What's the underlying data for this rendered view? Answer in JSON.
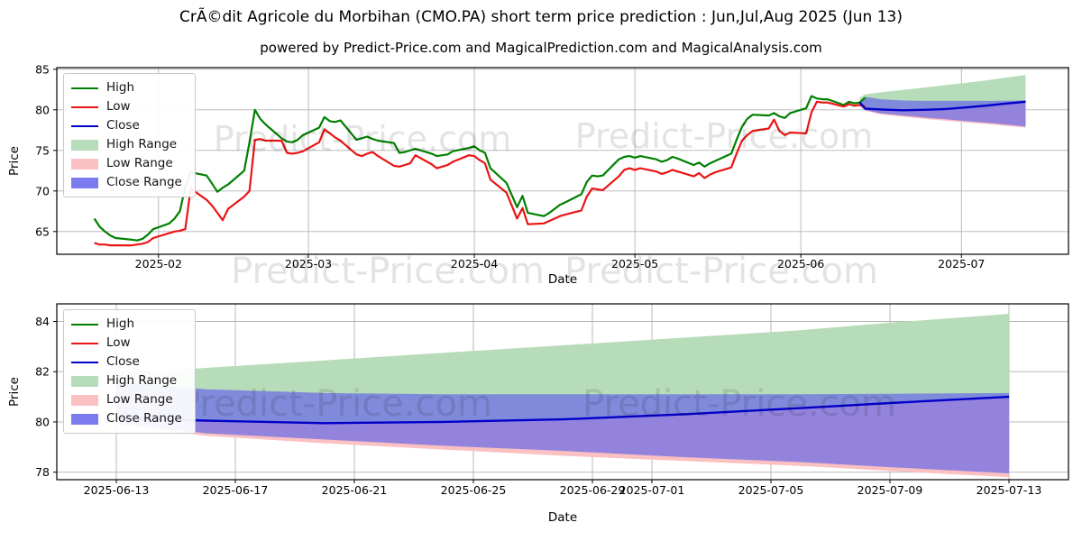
{
  "header": {
    "title": "CrÃ©dit Agricole du Morbihan (CMO.PA) short term price prediction : Jun,Jul,Aug 2025 (Jun 13)",
    "subtitle": "powered by Predict-Price.com and MagicalPrediction.com and MagicalAnalysis.com"
  },
  "watermark": {
    "text": "Predict-Price.com"
  },
  "colors": {
    "high_line": "#008000",
    "low_line": "#ea1414",
    "close_line": "#0000c8",
    "high_range_fill": "#b7dcb9",
    "low_range_fill": "#fbc0c2",
    "close_range_fill": "#6b6be6",
    "close_range_legend": "#7b7bf0",
    "grid": "#b3b3b3",
    "spine": "#000000"
  },
  "legend": {
    "items": [
      {
        "label": "High",
        "swatch": "line",
        "color_key": "high_line"
      },
      {
        "label": "Low",
        "swatch": "line",
        "color_key": "low_line"
      },
      {
        "label": "Close",
        "swatch": "line",
        "color_key": "close_line"
      },
      {
        "label": "High Range",
        "swatch": "patch",
        "color_key": "high_range_fill"
      },
      {
        "label": "Low Range",
        "swatch": "patch",
        "color_key": "low_range_fill"
      },
      {
        "label": "Close Range",
        "swatch": "patch",
        "color_key": "close_range_legend"
      }
    ]
  },
  "chart_data": [
    {
      "type": "line",
      "name": "price-history-with-forecast",
      "xlabel": "Date",
      "ylabel": "Price",
      "ylim": [
        62.2,
        85.2
      ],
      "yticks": [
        65,
        70,
        75,
        80,
        85
      ],
      "x_domain": [
        "2025-01-13",
        "2025-07-21"
      ],
      "xticks": [
        {
          "date": "2025-02-01",
          "label": "2025-02"
        },
        {
          "date": "2025-03-01",
          "label": "2025-03"
        },
        {
          "date": "2025-04-01",
          "label": "2025-04"
        },
        {
          "date": "2025-05-01",
          "label": "2025-05"
        },
        {
          "date": "2025-06-01",
          "label": "2025-06"
        },
        {
          "date": "2025-07-01",
          "label": "2025-07"
        }
      ],
      "grid": true,
      "legend_position": "upper left",
      "series": {
        "history": {
          "dates": [
            "2025-01-20",
            "2025-01-21",
            "2025-01-22",
            "2025-01-23",
            "2025-01-24",
            "2025-01-27",
            "2025-01-28",
            "2025-01-29",
            "2025-01-30",
            "2025-01-31",
            "2025-02-03",
            "2025-02-04",
            "2025-02-05",
            "2025-02-06",
            "2025-02-07",
            "2025-02-10",
            "2025-02-11",
            "2025-02-12",
            "2025-02-13",
            "2025-02-14",
            "2025-02-17",
            "2025-02-18",
            "2025-02-19",
            "2025-02-20",
            "2025-02-21",
            "2025-02-24",
            "2025-02-25",
            "2025-02-26",
            "2025-02-27",
            "2025-02-28",
            "2025-03-03",
            "2025-03-04",
            "2025-03-05",
            "2025-03-06",
            "2025-03-07",
            "2025-03-10",
            "2025-03-11",
            "2025-03-12",
            "2025-03-13",
            "2025-03-14",
            "2025-03-17",
            "2025-03-18",
            "2025-03-19",
            "2025-03-20",
            "2025-03-21",
            "2025-03-24",
            "2025-03-25",
            "2025-03-26",
            "2025-03-27",
            "2025-03-28",
            "2025-03-31",
            "2025-04-01",
            "2025-04-02",
            "2025-04-03",
            "2025-04-04",
            "2025-04-07",
            "2025-04-08",
            "2025-04-09",
            "2025-04-10",
            "2025-04-11",
            "2025-04-14",
            "2025-04-15",
            "2025-04-16",
            "2025-04-17",
            "2025-04-18",
            "2025-04-21",
            "2025-04-22",
            "2025-04-23",
            "2025-04-24",
            "2025-04-25",
            "2025-04-28",
            "2025-04-29",
            "2025-04-30",
            "2025-05-01",
            "2025-05-02",
            "2025-05-05",
            "2025-05-06",
            "2025-05-07",
            "2025-05-08",
            "2025-05-09",
            "2025-05-12",
            "2025-05-13",
            "2025-05-14",
            "2025-05-15",
            "2025-05-16",
            "2025-05-19",
            "2025-05-20",
            "2025-05-21",
            "2025-05-22",
            "2025-05-23",
            "2025-05-26",
            "2025-05-27",
            "2025-05-28",
            "2025-05-29",
            "2025-05-30",
            "2025-06-02",
            "2025-06-03",
            "2025-06-04",
            "2025-06-05",
            "2025-06-06",
            "2025-06-09",
            "2025-06-10",
            "2025-06-11",
            "2025-06-12",
            "2025-06-13"
          ],
          "high": [
            66.6,
            65.6,
            65.0,
            64.5,
            64.2,
            64.0,
            63.9,
            64.1,
            64.6,
            65.3,
            66.0,
            66.6,
            67.5,
            70.5,
            72.3,
            71.9,
            70.9,
            69.9,
            70.4,
            70.8,
            72.5,
            76.0,
            80.0,
            78.9,
            78.2,
            76.5,
            76.1,
            76.0,
            76.3,
            76.9,
            77.8,
            79.1,
            78.6,
            78.5,
            78.7,
            76.3,
            76.5,
            76.7,
            76.4,
            76.2,
            75.9,
            74.7,
            74.8,
            75.0,
            75.2,
            74.6,
            74.3,
            74.4,
            74.5,
            74.9,
            75.3,
            75.5,
            75.0,
            74.7,
            72.8,
            71.0,
            69.5,
            68.0,
            69.4,
            67.3,
            66.9,
            67.3,
            67.8,
            68.3,
            68.6,
            69.6,
            71.1,
            71.9,
            71.8,
            71.9,
            73.9,
            74.2,
            74.3,
            74.1,
            74.3,
            73.9,
            73.6,
            73.8,
            74.2,
            74.0,
            73.2,
            73.5,
            73.0,
            73.4,
            73.7,
            74.6,
            76.3,
            77.9,
            78.9,
            79.4,
            79.3,
            79.6,
            79.2,
            79.0,
            79.6,
            80.2,
            81.7,
            81.4,
            81.3,
            81.3,
            80.6,
            81.0,
            80.8,
            80.9,
            81.5
          ],
          "low": [
            63.6,
            63.4,
            63.4,
            63.3,
            63.3,
            63.3,
            63.4,
            63.5,
            63.7,
            64.2,
            64.8,
            65.0,
            65.1,
            65.3,
            70.3,
            68.9,
            68.2,
            67.3,
            66.4,
            67.8,
            69.3,
            70.0,
            76.3,
            76.4,
            76.2,
            76.2,
            74.7,
            74.6,
            74.7,
            74.9,
            76.0,
            77.6,
            77.1,
            76.6,
            76.2,
            74.5,
            74.3,
            74.6,
            74.8,
            74.3,
            73.1,
            73.0,
            73.2,
            73.4,
            74.4,
            73.3,
            72.8,
            73.0,
            73.2,
            73.6,
            74.4,
            74.3,
            73.8,
            73.4,
            71.4,
            69.8,
            68.2,
            66.6,
            67.9,
            65.9,
            66.0,
            66.3,
            66.6,
            66.9,
            67.1,
            67.6,
            69.3,
            70.3,
            70.2,
            70.1,
            71.8,
            72.6,
            72.8,
            72.6,
            72.8,
            72.4,
            72.1,
            72.3,
            72.6,
            72.4,
            71.8,
            72.2,
            71.6,
            72.0,
            72.3,
            72.9,
            74.6,
            76.2,
            76.9,
            77.4,
            77.7,
            78.8,
            77.4,
            76.9,
            77.2,
            77.1,
            79.7,
            81.0,
            80.9,
            80.9,
            80.4,
            80.7,
            80.5,
            80.6,
            80.4
          ]
        },
        "prediction": {
          "anchor_date": "2025-06-12",
          "anchor": {
            "high_upper": 81.5,
            "close_upper": 81.0,
            "close": 80.9,
            "close_lower": 80.8,
            "low_lower": 80.4
          },
          "dates": [
            "2025-06-13",
            "2025-06-16",
            "2025-06-20",
            "2025-06-24",
            "2025-06-28",
            "2025-07-02",
            "2025-07-06",
            "2025-07-09",
            "2025-07-13"
          ],
          "high_upper": [
            81.9,
            82.15,
            82.45,
            82.75,
            83.05,
            83.35,
            83.65,
            83.95,
            84.3
          ],
          "close_upper": [
            81.6,
            81.3,
            81.15,
            81.1,
            81.1,
            81.1,
            81.1,
            81.12,
            81.15
          ],
          "close": [
            80.15,
            80.05,
            79.95,
            80.0,
            80.1,
            80.3,
            80.55,
            80.75,
            81.0
          ],
          "close_lower": [
            79.95,
            79.55,
            79.3,
            79.05,
            78.85,
            78.6,
            78.4,
            78.2,
            77.95
          ],
          "low_lower": [
            79.9,
            79.45,
            79.15,
            78.9,
            78.65,
            78.45,
            78.25,
            78.05,
            77.8
          ]
        }
      }
    },
    {
      "type": "line",
      "name": "forecast-detail",
      "xlabel": "Date",
      "ylabel": "Price",
      "ylim": [
        77.7,
        84.7
      ],
      "yticks": [
        78,
        80,
        82,
        84
      ],
      "x_domain": [
        "2025-06-11",
        "2025-07-15"
      ],
      "xticks": [
        {
          "date": "2025-06-13",
          "label": "2025-06-13"
        },
        {
          "date": "2025-06-17",
          "label": "2025-06-17"
        },
        {
          "date": "2025-06-21",
          "label": "2025-06-21"
        },
        {
          "date": "2025-06-25",
          "label": "2025-06-25"
        },
        {
          "date": "2025-06-29",
          "label": "2025-06-29"
        },
        {
          "date": "2025-07-01",
          "label": "2025-07-01"
        },
        {
          "date": "2025-07-05",
          "label": "2025-07-05"
        },
        {
          "date": "2025-07-09",
          "label": "2025-07-09"
        },
        {
          "date": "2025-07-13",
          "label": "2025-07-13"
        }
      ],
      "grid": true,
      "legend_position": "upper left",
      "series": {
        "prediction_from_chart": 0
      }
    }
  ]
}
